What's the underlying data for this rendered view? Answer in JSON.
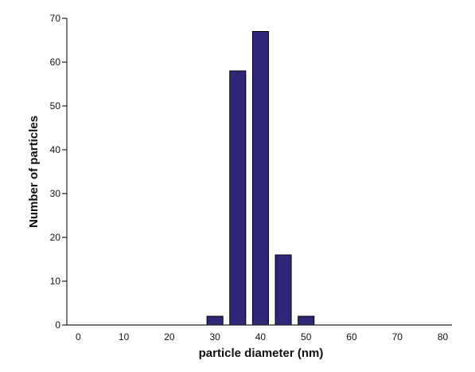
{
  "chart_data": {
    "type": "bar",
    "title": "",
    "xlabel": "particle diameter (nm)",
    "ylabel": "Number of particles",
    "x": [
      30,
      35,
      40,
      45,
      50
    ],
    "values": [
      2,
      58,
      67,
      16,
      2
    ],
    "bar_width": 3.5,
    "xlim": [
      -2.5,
      82
    ],
    "ylim": [
      0,
      70
    ],
    "xticks": [
      "0",
      "10",
      "20",
      "30",
      "40",
      "50",
      "60",
      "70",
      "80"
    ],
    "yticks": [
      "0",
      "10",
      "20",
      "30",
      "40",
      "50",
      "60",
      "70"
    ],
    "bar_color": "#2e2777",
    "grid": false,
    "legend": "none"
  }
}
